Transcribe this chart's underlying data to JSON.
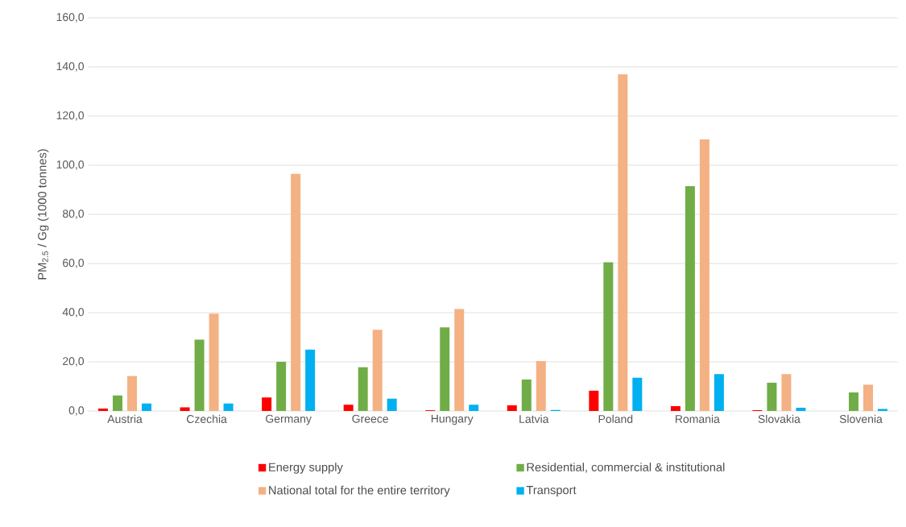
{
  "chart_data": {
    "type": "bar",
    "ylabel": "PM$_{2.5}$ / Gg (1000 tonnes)",
    "categories": [
      "Austria",
      "Czechia",
      "Germany",
      "Greece",
      "Hungary",
      "Latvia",
      "Poland",
      "Romania",
      "Slovakia",
      "Slovenia"
    ],
    "series": [
      {
        "name": "Energy supply",
        "color": "#ff0000",
        "values": [
          1.0,
          1.5,
          5.5,
          2.5,
          0.3,
          2.3,
          8.3,
          2.0,
          0.3,
          null
        ]
      },
      {
        "name": "Residential, commercial & institutional",
        "color": "#70ad47",
        "values": [
          6.3,
          29.0,
          20.0,
          17.8,
          34.0,
          12.8,
          60.5,
          91.5,
          11.5,
          7.5
        ]
      },
      {
        "name": "National total for the entire territory",
        "color": "#f4b183",
        "values": [
          14.2,
          39.6,
          96.5,
          33.0,
          41.5,
          20.3,
          137.0,
          110.5,
          15.0,
          10.7
        ]
      },
      {
        "name": "Transport",
        "color": "#00b0f0",
        "values": [
          3.0,
          3.0,
          25.0,
          5.0,
          2.5,
          0.4,
          13.5,
          15.0,
          1.3,
          0.8
        ]
      }
    ],
    "ylim": [
      0,
      160
    ],
    "yticks": [
      {
        "value": 0,
        "label": "0,0"
      },
      {
        "value": 20,
        "label": "20,0"
      },
      {
        "value": 40,
        "label": "40,0"
      },
      {
        "value": 60,
        "label": "60,0"
      },
      {
        "value": 80,
        "label": "80,0"
      },
      {
        "value": 100,
        "label": "100,0"
      },
      {
        "value": 120,
        "label": "120,0"
      },
      {
        "value": 140,
        "label": "140,0"
      },
      {
        "value": 160,
        "label": "160,0"
      }
    ],
    "grid": "y",
    "legend": "bottom"
  }
}
